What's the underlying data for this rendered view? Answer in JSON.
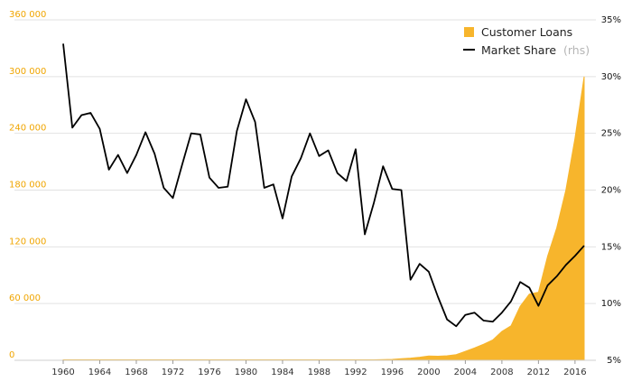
{
  "chart_data": {
    "type": "area+line",
    "title": "",
    "xlabel": "",
    "ylabel": "",
    "y2label": "",
    "xlim": [
      1960,
      2017
    ],
    "ylim": [
      0,
      360000
    ],
    "y2lim": [
      5,
      35
    ],
    "x_ticks": [
      1960,
      1964,
      1968,
      1972,
      1976,
      1980,
      1984,
      1988,
      1992,
      1996,
      2000,
      2004,
      2008,
      2012,
      2016
    ],
    "y_ticks": [
      {
        "value": 0,
        "label": "0"
      },
      {
        "value": 60000,
        "label": "60 000"
      },
      {
        "value": 120000,
        "label": "120 000"
      },
      {
        "value": 180000,
        "label": "180 000"
      },
      {
        "value": 240000,
        "label": "240 000"
      },
      {
        "value": 300000,
        "label": "300 000"
      },
      {
        "value": 360000,
        "label": "360 000"
      }
    ],
    "y2_ticks": [
      {
        "value": 5,
        "label": "5%"
      },
      {
        "value": 10,
        "label": "10%"
      },
      {
        "value": 15,
        "label": "15%"
      },
      {
        "value": 20,
        "label": "20%"
      },
      {
        "value": 25,
        "label": "25%"
      },
      {
        "value": 30,
        "label": "30%"
      },
      {
        "value": 35,
        "label": "35%"
      }
    ],
    "grid": "horizontal",
    "legend_position": "top-right",
    "legend": {
      "loans_label": "Customer Loans",
      "share_label": "Market Share",
      "share_axis_note": "(rhs)"
    },
    "colors": {
      "loans": "#f7b52c",
      "share": "#000000",
      "left_axis": "#f0a500",
      "grid": "#e2e2e2"
    },
    "series": [
      {
        "name": "Customer Loans",
        "axis": "left",
        "style": "area",
        "x": [
          1960,
          1961,
          1962,
          1963,
          1964,
          1965,
          1966,
          1967,
          1968,
          1969,
          1970,
          1971,
          1972,
          1973,
          1974,
          1975,
          1976,
          1977,
          1978,
          1979,
          1980,
          1981,
          1982,
          1983,
          1984,
          1985,
          1986,
          1987,
          1988,
          1989,
          1990,
          1991,
          1992,
          1993,
          1994,
          1995,
          1996,
          1997,
          1998,
          1999,
          2000,
          2001,
          2002,
          2003,
          2004,
          2005,
          2006,
          2007,
          2008,
          2009,
          2010,
          2011,
          2012,
          2013,
          2014,
          2015,
          2016,
          2017
        ],
        "values": [
          500,
          500,
          500,
          500,
          500,
          500,
          500,
          500,
          500,
          500,
          500,
          500,
          500,
          500,
          500,
          500,
          500,
          500,
          500,
          500,
          500,
          500,
          500,
          500,
          500,
          500,
          500,
          500,
          500,
          500,
          500,
          500,
          500,
          500,
          500,
          700,
          1000,
          1700,
          2300,
          3200,
          4500,
          4300,
          4800,
          6000,
          9500,
          13000,
          17000,
          21500,
          30500,
          36500,
          57000,
          70000,
          72000,
          110000,
          140000,
          180000,
          235000,
          300000
        ]
      },
      {
        "name": "Market Share",
        "axis": "right",
        "style": "line",
        "x": [
          1960,
          1961,
          1962,
          1963,
          1964,
          1965,
          1966,
          1967,
          1968,
          1969,
          1970,
          1971,
          1972,
          1973,
          1974,
          1975,
          1976,
          1977,
          1978,
          1979,
          1980,
          1981,
          1982,
          1983,
          1984,
          1985,
          1986,
          1987,
          1988,
          1989,
          1990,
          1991,
          1992,
          1993,
          1994,
          1995,
          1996,
          1997,
          1998,
          1999,
          2000,
          2001,
          2002,
          2003,
          2004,
          2005,
          2006,
          2007,
          2008,
          2009,
          2010,
          2011,
          2012,
          2013,
          2014,
          2015,
          2016,
          2017
        ],
        "values": [
          32.9,
          25.5,
          26.6,
          26.8,
          25.4,
          21.8,
          23.1,
          21.5,
          23.1,
          25.1,
          23.2,
          20.2,
          19.3,
          22.2,
          25.0,
          24.9,
          21.1,
          20.2,
          20.3,
          25.2,
          28.0,
          26.0,
          20.2,
          20.5,
          17.5,
          21.2,
          22.8,
          25.0,
          23.0,
          23.5,
          21.5,
          20.8,
          23.6,
          16.1,
          18.9,
          22.1,
          20.1,
          20.0,
          12.1,
          13.5,
          12.8,
          10.6,
          8.6,
          8.0,
          9.0,
          9.2,
          8.5,
          8.4,
          9.2,
          10.2,
          11.9,
          11.4,
          9.8,
          11.6,
          12.4,
          13.4,
          14.2,
          15.1
        ]
      }
    ]
  }
}
